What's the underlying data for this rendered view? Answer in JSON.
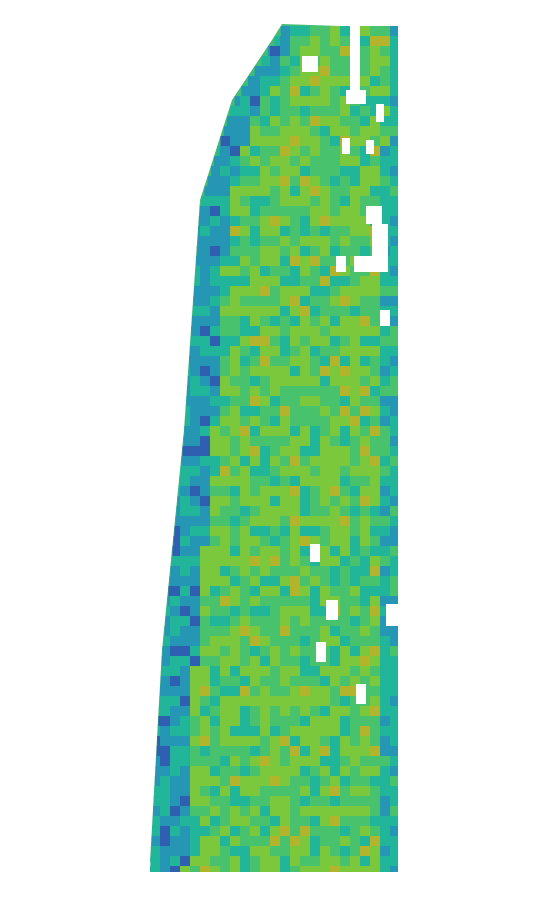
{
  "map": {
    "kind": "raster-strip",
    "palette": [
      "#2f5fb0",
      "#2596b4",
      "#21b59a",
      "#49c26e",
      "#7cc83c",
      "#b2b42c"
    ],
    "background": "#ffffff",
    "legend": null
  }
}
